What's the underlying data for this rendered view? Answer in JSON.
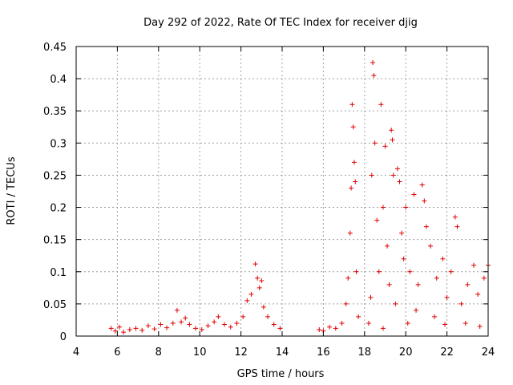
{
  "chart_data": {
    "type": "scatter",
    "title": "Day 292 of 2022, Rate Of TEC Index for receiver djig",
    "xlabel": "GPS time / hours",
    "ylabel": "ROTI / TECUs",
    "xlim": [
      4,
      24
    ],
    "ylim": [
      0,
      0.45
    ],
    "grid": true,
    "legend": "none",
    "marker": "plus",
    "color": "#e00000",
    "xticks": [
      "4",
      "6",
      "8",
      "10",
      "12",
      "14",
      "16",
      "18",
      "20",
      "22",
      "24"
    ],
    "yticks": [
      "0",
      "0.05",
      "0.1",
      "0.15",
      "0.2",
      "0.25",
      "0.3",
      "0.35",
      "0.4",
      "0.45"
    ],
    "points": [
      [
        5.7,
        0.012
      ],
      [
        5.9,
        0.008
      ],
      [
        6.1,
        0.014
      ],
      [
        6.3,
        0.006
      ],
      [
        6.6,
        0.01
      ],
      [
        6.9,
        0.012
      ],
      [
        7.2,
        0.009
      ],
      [
        7.5,
        0.016
      ],
      [
        7.8,
        0.011
      ],
      [
        8.1,
        0.018
      ],
      [
        8.4,
        0.013
      ],
      [
        8.7,
        0.02
      ],
      [
        8.9,
        0.04
      ],
      [
        9.1,
        0.022
      ],
      [
        9.3,
        0.028
      ],
      [
        9.5,
        0.018
      ],
      [
        9.8,
        0.012
      ],
      [
        10.1,
        0.01
      ],
      [
        10.4,
        0.016
      ],
      [
        10.7,
        0.022
      ],
      [
        10.9,
        0.03
      ],
      [
        11.2,
        0.018
      ],
      [
        11.5,
        0.014
      ],
      [
        11.8,
        0.02
      ],
      [
        12.1,
        0.03
      ],
      [
        12.3,
        0.055
      ],
      [
        12.5,
        0.065
      ],
      [
        12.7,
        0.112
      ],
      [
        12.8,
        0.09
      ],
      [
        12.9,
        0.075
      ],
      [
        13.0,
        0.086
      ],
      [
        13.1,
        0.045
      ],
      [
        13.3,
        0.03
      ],
      [
        13.6,
        0.018
      ],
      [
        13.9,
        0.012
      ],
      [
        15.8,
        0.01
      ],
      [
        16.0,
        0.008
      ],
      [
        16.3,
        0.014
      ],
      [
        16.6,
        0.012
      ],
      [
        16.9,
        0.02
      ],
      [
        17.1,
        0.05
      ],
      [
        17.2,
        0.09
      ],
      [
        17.3,
        0.16
      ],
      [
        17.35,
        0.23
      ],
      [
        17.4,
        0.36
      ],
      [
        17.45,
        0.325
      ],
      [
        17.5,
        0.27
      ],
      [
        17.55,
        0.24
      ],
      [
        17.6,
        0.1
      ],
      [
        17.7,
        0.03
      ],
      [
        18.2,
        0.02
      ],
      [
        18.3,
        0.06
      ],
      [
        18.35,
        0.25
      ],
      [
        18.4,
        0.425
      ],
      [
        18.45,
        0.405
      ],
      [
        18.5,
        0.3
      ],
      [
        18.6,
        0.18
      ],
      [
        18.7,
        0.1
      ],
      [
        18.8,
        0.36
      ],
      [
        18.9,
        0.2
      ],
      [
        19.0,
        0.295
      ],
      [
        19.1,
        0.14
      ],
      [
        19.2,
        0.08
      ],
      [
        19.3,
        0.32
      ],
      [
        19.35,
        0.305
      ],
      [
        19.4,
        0.25
      ],
      [
        19.6,
        0.26
      ],
      [
        19.7,
        0.24
      ],
      [
        19.8,
        0.16
      ],
      [
        19.9,
        0.12
      ],
      [
        20.0,
        0.2
      ],
      [
        20.2,
        0.1
      ],
      [
        20.4,
        0.22
      ],
      [
        20.6,
        0.08
      ],
      [
        20.8,
        0.235
      ],
      [
        20.9,
        0.21
      ],
      [
        21.0,
        0.17
      ],
      [
        21.2,
        0.14
      ],
      [
        21.5,
        0.09
      ],
      [
        21.8,
        0.12
      ],
      [
        22.0,
        0.06
      ],
      [
        22.2,
        0.1
      ],
      [
        22.4,
        0.185
      ],
      [
        22.5,
        0.17
      ],
      [
        22.7,
        0.05
      ],
      [
        23.0,
        0.08
      ],
      [
        23.3,
        0.11
      ],
      [
        23.5,
        0.065
      ],
      [
        23.8,
        0.09
      ],
      [
        24.0,
        0.11
      ],
      [
        19.5,
        0.05
      ],
      [
        20.5,
        0.04
      ],
      [
        21.4,
        0.03
      ],
      [
        22.9,
        0.02
      ],
      [
        23.6,
        0.015
      ],
      [
        18.9,
        0.012
      ],
      [
        20.1,
        0.02
      ],
      [
        21.9,
        0.018
      ]
    ]
  }
}
